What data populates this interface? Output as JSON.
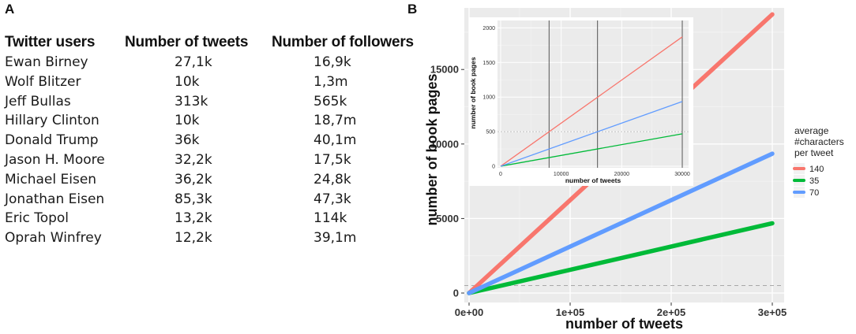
{
  "panels": {
    "a_label": "A",
    "b_label": "B"
  },
  "table": {
    "headers": [
      "Twitter users",
      "Number of tweets",
      "Number of followers"
    ],
    "rows": [
      {
        "user": "Ewan Birney",
        "tweets": "27,1k",
        "followers": "16,9k"
      },
      {
        "user": "Wolf Blitzer",
        "tweets": "10k",
        "followers": "1,3m"
      },
      {
        "user": "Jeff Bullas",
        "tweets": "313k",
        "followers": "565k"
      },
      {
        "user": "Hillary Clinton",
        "tweets": "10k",
        "followers": "18,7m"
      },
      {
        "user": "Donald Trump",
        "tweets": "36k",
        "followers": "40,1m"
      },
      {
        "user": "Jason H. Moore",
        "tweets": "32,2k",
        "followers": "17,5k"
      },
      {
        "user": "Michael Eisen",
        "tweets": "36,2k",
        "followers": "24,8k"
      },
      {
        "user": "Jonathan Eisen",
        "tweets": "85,3k",
        "followers": "47,3k"
      },
      {
        "user": "Eric Topol",
        "tweets": "13,2k",
        "followers": "114k"
      },
      {
        "user": "Oprah Winfrey",
        "tweets": "12,2k",
        "followers": "39,1m"
      }
    ]
  },
  "chart_data": [
    {
      "type": "line",
      "xlabel": "number of tweets",
      "ylabel": "number of book pages",
      "xlim": [
        0,
        300000
      ],
      "ylim": [
        0,
        18500
      ],
      "x_ticks": [
        0,
        100000,
        200000,
        300000
      ],
      "x_tick_labels": [
        "0e+00",
        "1e+05",
        "2e+05",
        "3e+05"
      ],
      "y_ticks": [
        0,
        5000,
        10000,
        15000
      ],
      "y_tick_labels": [
        "0",
        "5000",
        "10000",
        "15000"
      ],
      "hline": 500,
      "legend": {
        "title": "average\n#characters\nper tweet",
        "position": "right"
      },
      "series": [
        {
          "name": "140",
          "color": "#F8766D",
          "x": [
            0,
            300000
          ],
          "y": [
            0,
            18700
          ]
        },
        {
          "name": "35",
          "color": "#00BA38",
          "x": [
            0,
            300000
          ],
          "y": [
            0,
            4680
          ]
        },
        {
          "name": "70",
          "color": "#619CFF",
          "x": [
            0,
            300000
          ],
          "y": [
            0,
            9350
          ]
        }
      ]
    },
    {
      "type": "line",
      "xlabel": "number of tweets",
      "ylabel": "number of book pages",
      "xlim": [
        0,
        30000
      ],
      "ylim": [
        0,
        2050
      ],
      "x_ticks": [
        0,
        10000,
        20000,
        30000
      ],
      "x_tick_labels": [
        "0",
        "10000",
        "20000",
        "30000"
      ],
      "y_ticks": [
        0,
        500,
        1000,
        1500,
        2000
      ],
      "y_tick_labels": [
        "0",
        "500",
        "1000",
        "1500",
        "2000"
      ],
      "vlines": [
        8000,
        16000,
        30000
      ],
      "hline": 500,
      "series": [
        {
          "name": "140",
          "color": "#F8766D",
          "x": [
            0,
            30000
          ],
          "y": [
            0,
            1870
          ]
        },
        {
          "name": "35",
          "color": "#00BA38",
          "x": [
            0,
            30000
          ],
          "y": [
            0,
            468
          ]
        },
        {
          "name": "70",
          "color": "#619CFF",
          "x": [
            0,
            30000
          ],
          "y": [
            0,
            935
          ]
        }
      ]
    }
  ]
}
